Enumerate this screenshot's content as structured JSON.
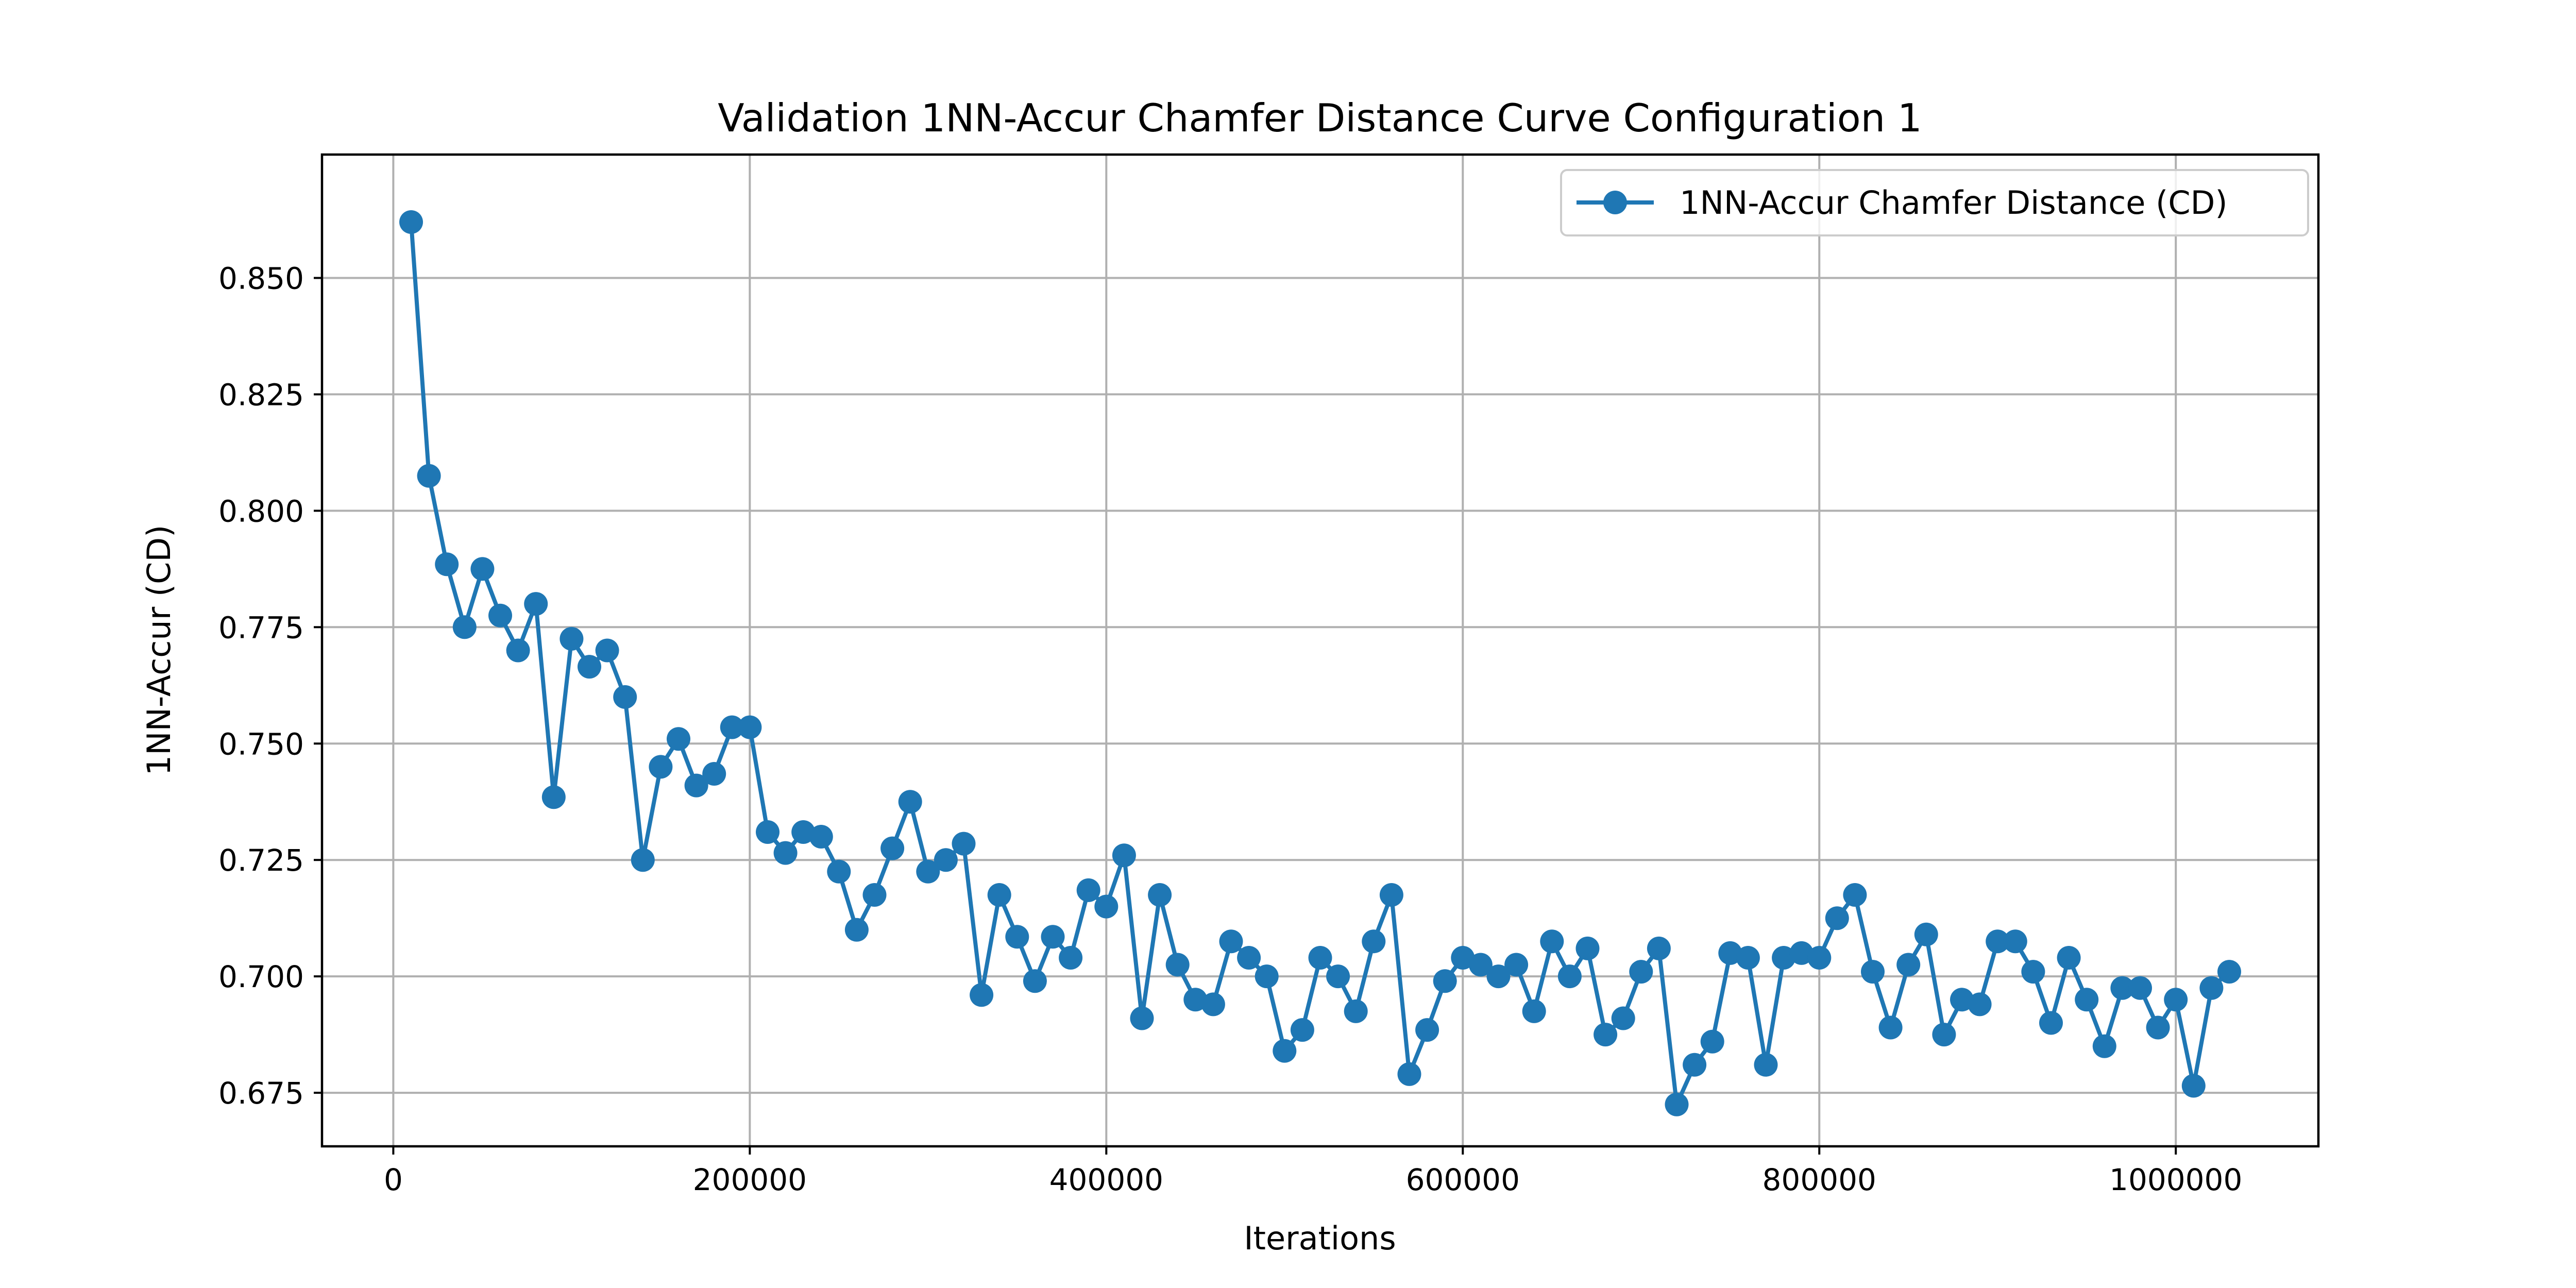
{
  "chart_data": {
    "type": "line",
    "title": "Validation 1NN-Accur Chamfer Distance Curve Configuration 1",
    "xlabel": "Iterations",
    "ylabel": "1NN-Accur (CD)",
    "xlim": [
      -40000,
      1080000
    ],
    "ylim": [
      0.6635,
      0.8765
    ],
    "x_ticks": [
      0,
      200000,
      400000,
      600000,
      800000,
      1000000
    ],
    "x_tick_labels": [
      "0",
      "200000",
      "400000",
      "600000",
      "800000",
      "1000000"
    ],
    "y_ticks": [
      0.675,
      0.7,
      0.725,
      0.75,
      0.775,
      0.8,
      0.825,
      0.85
    ],
    "y_tick_labels": [
      "0.675",
      "0.700",
      "0.725",
      "0.750",
      "0.775",
      "0.800",
      "0.825",
      "0.850"
    ],
    "grid": true,
    "legend_position": "top-right",
    "series": [
      {
        "name": "1NN-Accur Chamfer Distance (CD)",
        "color": "#1f77b4",
        "marker": "circle",
        "x": [
          10000,
          20000,
          30000,
          40000,
          50000,
          60000,
          70000,
          80000,
          90000,
          100000,
          110000,
          120000,
          130000,
          140000,
          150000,
          160000,
          170000,
          180000,
          190000,
          200000,
          210000,
          220000,
          230000,
          240000,
          250000,
          260000,
          270000,
          280000,
          290000,
          300000,
          310000,
          320000,
          330000,
          340000,
          350000,
          360000,
          370000,
          380000,
          390000,
          400000,
          410000,
          420000,
          430000,
          440000,
          450000,
          460000,
          470000,
          480000,
          490000,
          500000,
          510000,
          520000,
          530000,
          540000,
          550000,
          560000,
          570000,
          580000,
          590000,
          600000,
          610000,
          620000,
          630000,
          640000,
          650000,
          660000,
          670000,
          680000,
          690000,
          700000,
          710000,
          720000,
          730000,
          740000,
          750000,
          760000,
          770000,
          780000,
          790000,
          800000,
          810000,
          820000,
          830000,
          840000,
          850000,
          860000,
          870000,
          880000,
          890000,
          900000,
          910000,
          920000,
          930000,
          940000,
          950000,
          960000,
          970000,
          980000,
          990000,
          1000000,
          1010000,
          1020000,
          1030000
        ],
        "y": [
          0.862,
          0.8075,
          0.7885,
          0.775,
          0.7875,
          0.7775,
          0.77,
          0.78,
          0.7385,
          0.7725,
          0.7665,
          0.77,
          0.76,
          0.725,
          0.745,
          0.751,
          0.741,
          0.7435,
          0.7535,
          0.7535,
          0.731,
          0.7265,
          0.731,
          0.73,
          0.7225,
          0.71,
          0.7175,
          0.7275,
          0.7375,
          0.7225,
          0.725,
          0.7285,
          0.696,
          0.7175,
          0.7085,
          0.699,
          0.7085,
          0.704,
          0.7185,
          0.715,
          0.726,
          0.691,
          0.7175,
          0.7025,
          0.695,
          0.694,
          0.7075,
          0.704,
          0.7,
          0.684,
          0.6885,
          0.704,
          0.7,
          0.6925,
          0.7075,
          0.7175,
          0.679,
          0.6885,
          0.699,
          0.704,
          0.7025,
          0.7,
          0.7025,
          0.6925,
          0.7075,
          0.7,
          0.706,
          0.6875,
          0.691,
          0.701,
          0.706,
          0.6725,
          0.681,
          0.686,
          0.705,
          0.704,
          0.681,
          0.704,
          0.705,
          0.704,
          0.7125,
          0.7175,
          0.701,
          0.689,
          0.7025,
          0.709,
          0.6875,
          0.695,
          0.694,
          0.7075,
          0.7075,
          0.701,
          0.69,
          0.704,
          0.695,
          0.685,
          0.6975,
          0.6975,
          0.689,
          0.695,
          0.6765,
          0.6975,
          0.701
        ]
      }
    ]
  }
}
